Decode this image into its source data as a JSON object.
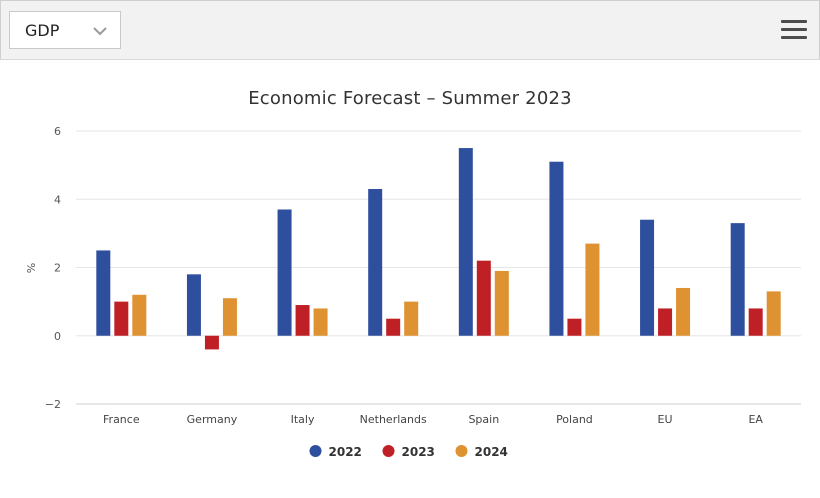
{
  "toolbar": {
    "selector_value": "GDP",
    "selector_icon": "chevron-down-icon",
    "menu_icon": "hamburger-menu-icon"
  },
  "chart_data": {
    "type": "bar",
    "title": "Economic Forecast – Summer 2023",
    "xlabel": "",
    "ylabel": "%",
    "ylim": [
      -2,
      6
    ],
    "yticks": [
      6,
      4,
      2,
      0,
      -2
    ],
    "yticks_labels": [
      "6",
      "4",
      "2",
      "0",
      "−2"
    ],
    "grid": true,
    "legend_position": "bottom-center",
    "categories": [
      "France",
      "Germany",
      "Italy",
      "Netherlands",
      "Spain",
      "Poland",
      "EU",
      "EA"
    ],
    "series": [
      {
        "name": "2022",
        "color": "#2e4f9e",
        "values": [
          2.5,
          1.8,
          3.7,
          4.3,
          5.5,
          5.1,
          3.4,
          3.3
        ]
      },
      {
        "name": "2023",
        "color": "#bf2026",
        "values": [
          1.0,
          -0.4,
          0.9,
          0.5,
          2.2,
          0.5,
          0.8,
          0.8
        ]
      },
      {
        "name": "2024",
        "color": "#de9232",
        "values": [
          1.2,
          1.1,
          0.8,
          1.0,
          1.9,
          2.7,
          1.4,
          1.3
        ]
      }
    ]
  }
}
